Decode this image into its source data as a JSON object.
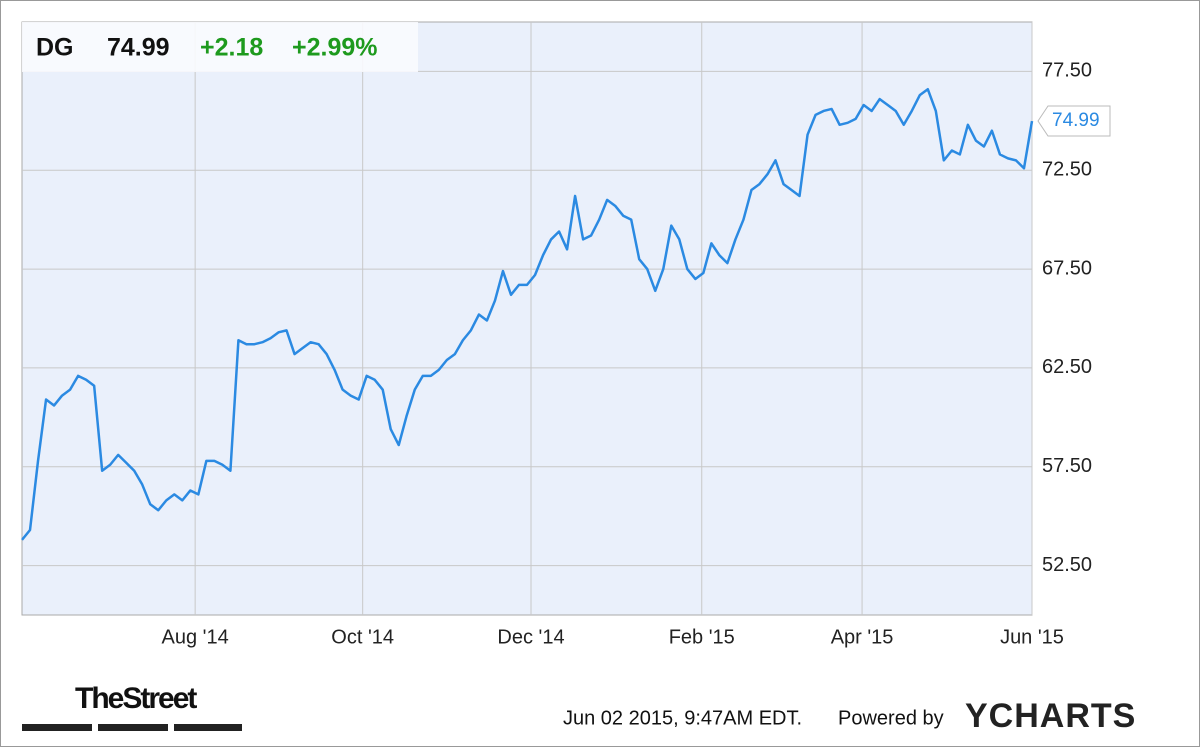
{
  "chart_data": {
    "type": "line",
    "change": "+2.18",
    "change_percent": "+2.99%",
    "series": [
      {
        "name": "DG",
        "color": "#2b8ae2",
        "values": [
          53.8,
          54.3,
          57.8,
          60.9,
          60.6,
          61.1,
          61.4,
          62.1,
          61.9,
          61.6,
          57.3,
          57.6,
          58.1,
          57.7,
          57.3,
          56.6,
          55.6,
          55.3,
          55.8,
          56.1,
          55.8,
          56.3,
          56.1,
          57.8,
          57.8,
          57.6,
          57.3,
          63.9,
          63.7,
          63.7,
          63.8,
          64.0,
          64.3,
          64.4,
          63.2,
          63.5,
          63.8,
          63.7,
          63.2,
          62.4,
          61.4,
          61.1,
          60.9,
          62.1,
          61.9,
          61.4,
          59.4,
          58.6,
          60.1,
          61.4,
          62.1,
          62.1,
          62.4,
          62.9,
          63.2,
          63.9,
          64.4,
          65.2,
          64.9,
          65.9,
          67.4,
          66.2,
          66.7,
          66.7,
          67.2,
          68.2,
          69.0,
          69.4,
          68.5,
          71.2,
          69.0,
          69.2,
          70.0,
          71.0,
          70.7,
          70.2,
          70.0,
          68.0,
          67.5,
          66.4,
          67.5,
          69.7,
          69.0,
          67.5,
          67.0,
          67.3,
          68.8,
          68.2,
          67.8,
          69.0,
          70.0,
          71.5,
          71.8,
          72.3,
          73.0,
          71.8,
          71.5,
          71.2,
          74.3,
          75.3,
          75.5,
          75.6,
          74.8,
          74.9,
          75.1,
          75.8,
          75.5,
          76.1,
          75.8,
          75.5,
          74.8,
          75.5,
          76.3,
          76.6,
          75.5,
          73.0,
          73.5,
          73.3,
          74.8,
          74.0,
          73.7,
          74.5,
          73.3,
          73.1,
          73.0,
          72.6,
          74.99
        ]
      }
    ],
    "xlim": [
      0,
      126
    ],
    "xticks": [
      {
        "value": 21.6,
        "label": "Aug '14"
      },
      {
        "value": 42.5,
        "label": "Oct '14"
      },
      {
        "value": 63.5,
        "label": "Dec '14"
      },
      {
        "value": 84.8,
        "label": "Feb '15"
      },
      {
        "value": 104.8,
        "label": "Apr '15"
      },
      {
        "value": 126,
        "label": "Jun '15"
      }
    ],
    "ylim": [
      50,
      80
    ],
    "yticks": [
      {
        "value": 52.5,
        "label": "52.50"
      },
      {
        "value": 57.5,
        "label": "57.50"
      },
      {
        "value": 62.5,
        "label": "62.50"
      },
      {
        "value": 67.5,
        "label": "67.50"
      },
      {
        "value": 72.5,
        "label": "72.50"
      },
      {
        "value": 77.5,
        "label": "77.50"
      }
    ],
    "grid": true
  },
  "footer": {
    "source": "TheStreet",
    "timestamp": "Jun 02 2015, 9:47AM EDT.",
    "powered_by": "Powered by",
    "brand": "YCHARTS"
  }
}
